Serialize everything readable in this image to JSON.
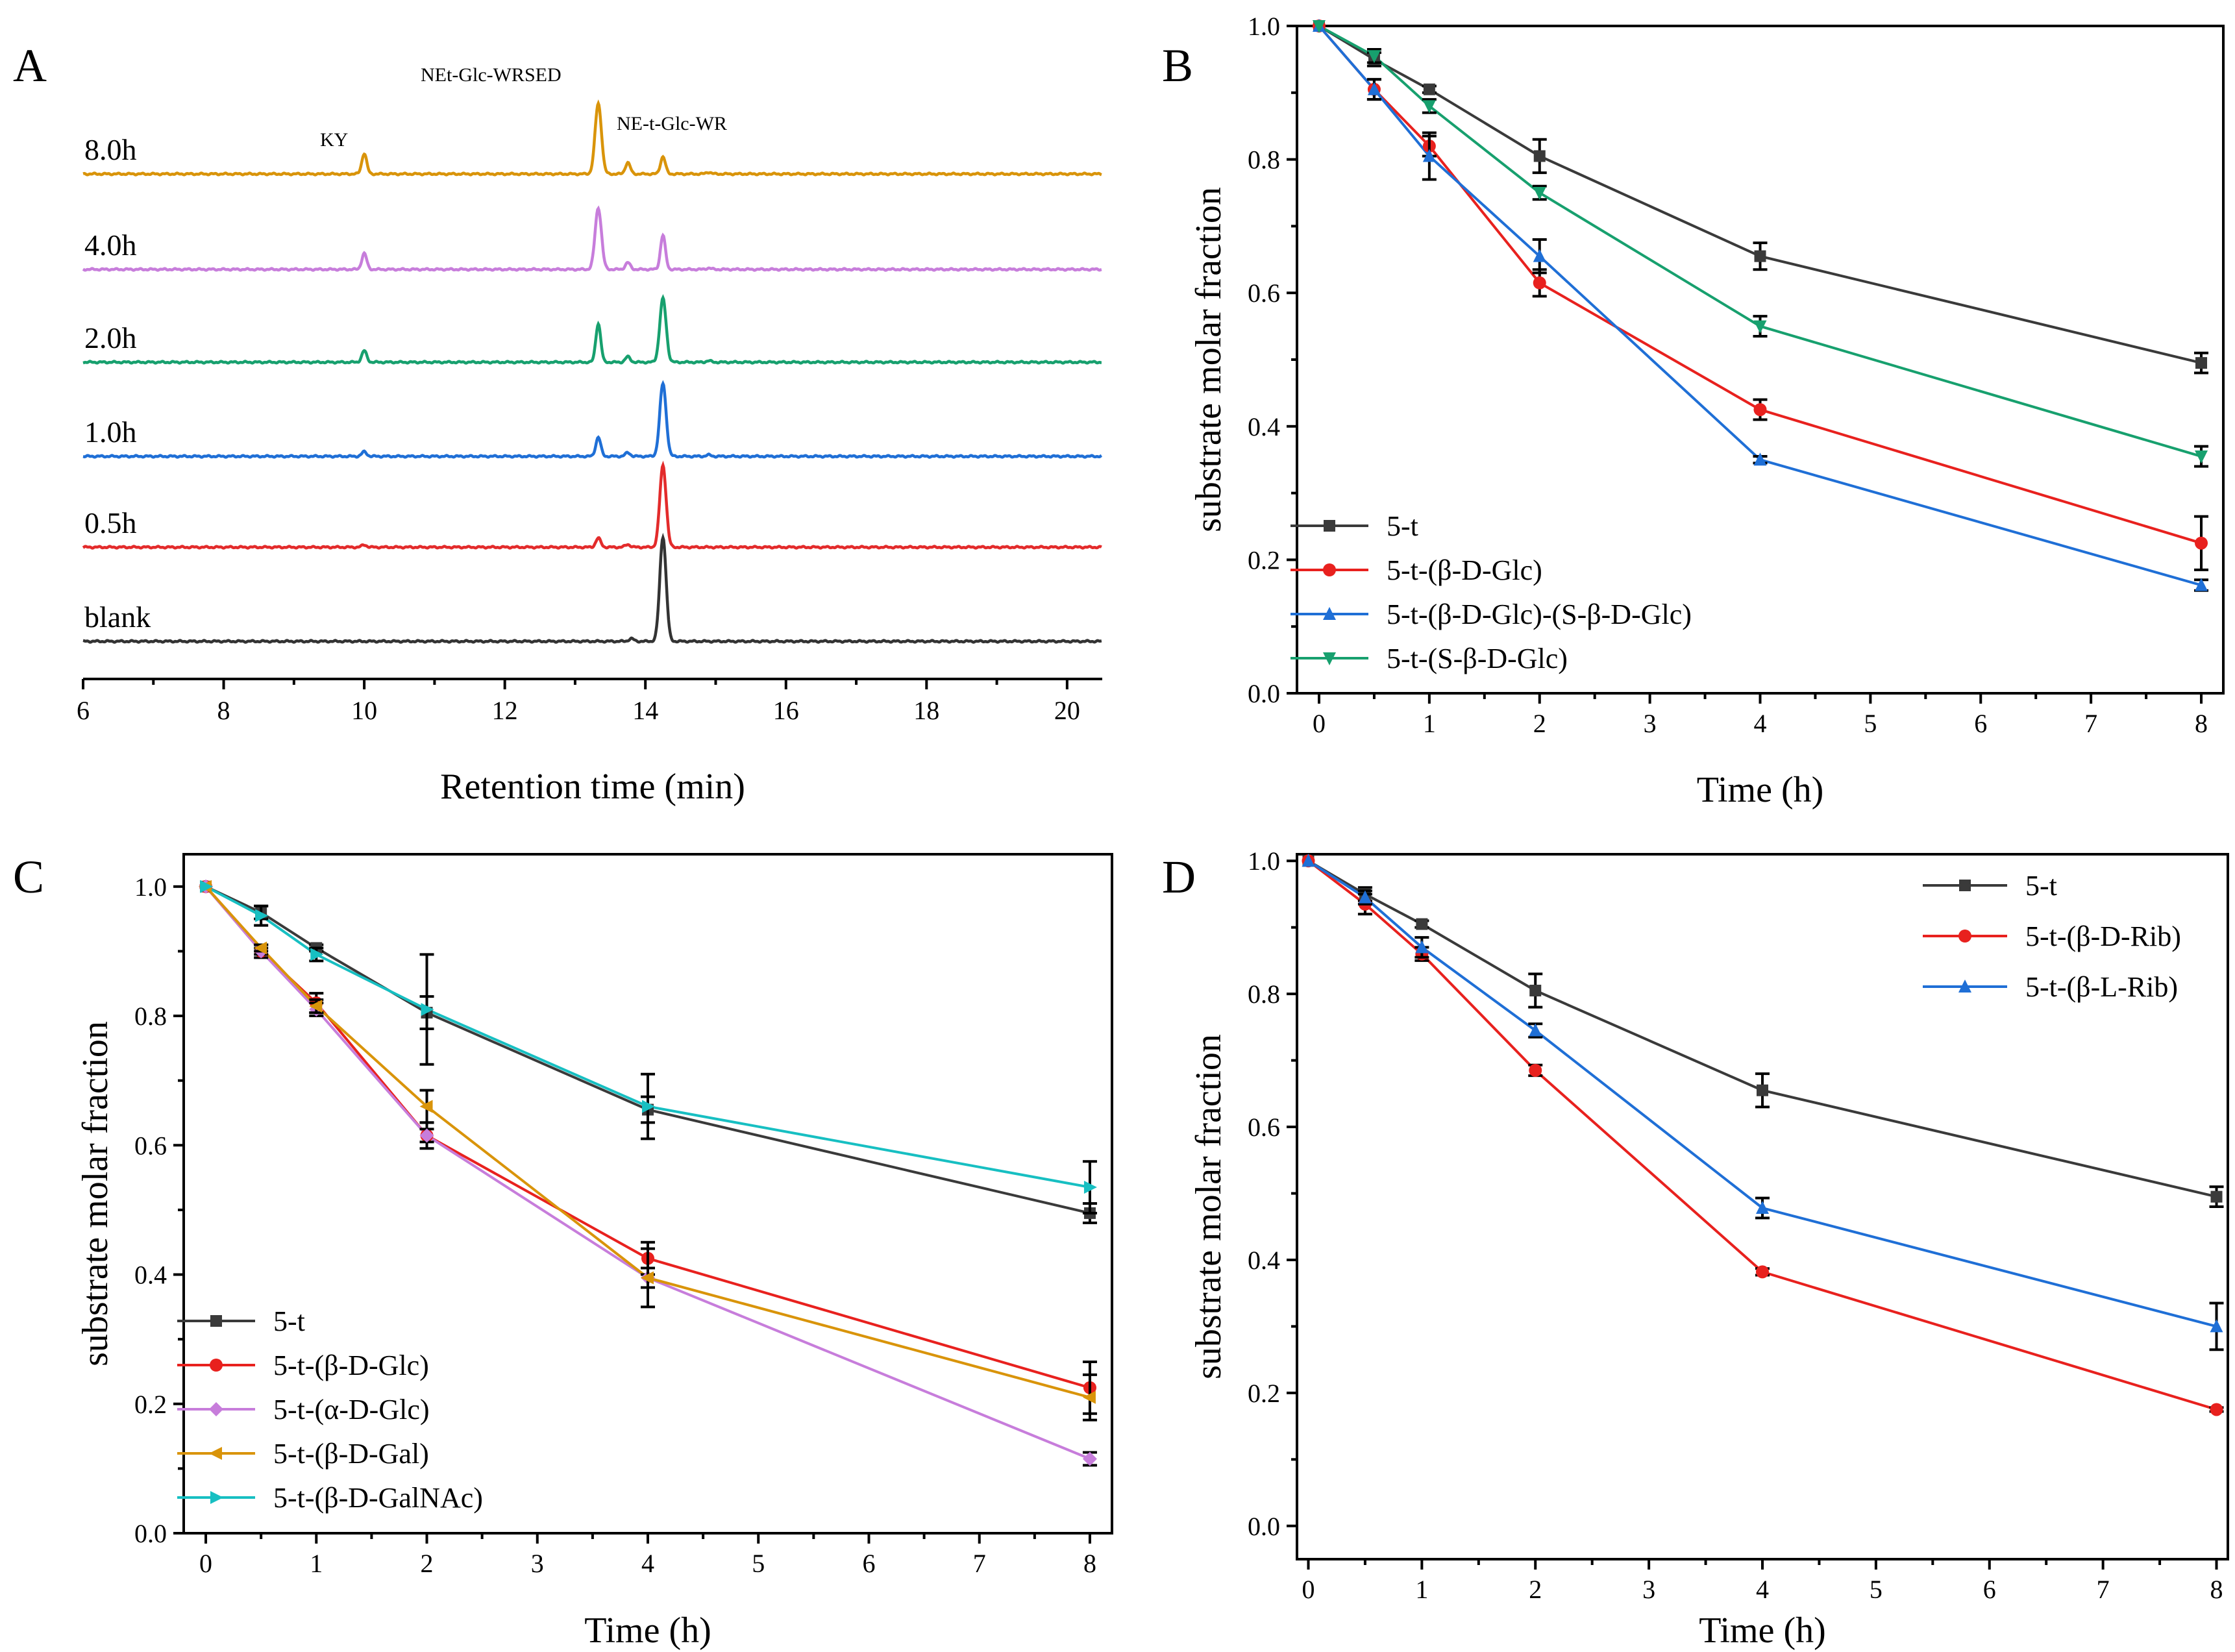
{
  "panels": [
    "A",
    "B",
    "C",
    "D"
  ],
  "chart_data": [
    {
      "panel": "A",
      "type": "line",
      "title": "",
      "xlabel": "Retention time (min)",
      "ylabel": "",
      "xlim": [
        6,
        20.5
      ],
      "xticks": [
        6,
        8,
        10,
        12,
        14,
        16,
        18,
        20
      ],
      "peak_labels": [
        {
          "text": "KY",
          "x": 10.0
        },
        {
          "text": "NEt-Glc-WRSED",
          "x": 13.3
        },
        {
          "text": "NE-t-Glc-WR",
          "x": 14.25
        }
      ],
      "series": [
        {
          "name": "8.0h",
          "color": "#D9940A",
          "peaks": [
            {
              "x": 10.0,
              "h": 0.45
            },
            {
              "x": 13.33,
              "h": 1.55
            },
            {
              "x": 13.75,
              "h": 0.25
            },
            {
              "x": 14.25,
              "h": 0.38
            },
            {
              "x": 14.9,
              "h": 0.04
            }
          ]
        },
        {
          "name": "4.0h",
          "color": "#C77DDB",
          "peaks": [
            {
              "x": 10.0,
              "h": 0.35
            },
            {
              "x": 13.33,
              "h": 1.35
            },
            {
              "x": 13.75,
              "h": 0.15
            },
            {
              "x": 14.25,
              "h": 0.75
            },
            {
              "x": 14.9,
              "h": 0.03
            }
          ]
        },
        {
          "name": "2.0h",
          "color": "#17A06E",
          "peaks": [
            {
              "x": 10.0,
              "h": 0.25
            },
            {
              "x": 13.33,
              "h": 0.85
            },
            {
              "x": 13.75,
              "h": 0.12
            },
            {
              "x": 14.25,
              "h": 1.4
            },
            {
              "x": 14.9,
              "h": 0.03
            }
          ]
        },
        {
          "name": "1.0h",
          "color": "#1F6FD6",
          "peaks": [
            {
              "x": 10.0,
              "h": 0.1
            },
            {
              "x": 13.33,
              "h": 0.42
            },
            {
              "x": 13.75,
              "h": 0.08
            },
            {
              "x": 14.25,
              "h": 1.6
            },
            {
              "x": 14.9,
              "h": 0.03
            }
          ]
        },
        {
          "name": "0.5h",
          "color": "#E32B2B",
          "peaks": [
            {
              "x": 10.0,
              "h": 0.05
            },
            {
              "x": 13.33,
              "h": 0.2
            },
            {
              "x": 13.75,
              "h": 0.06
            },
            {
              "x": 14.25,
              "h": 1.8
            }
          ]
        },
        {
          "name": "blank",
          "color": "#333333",
          "peaks": [
            {
              "x": 13.8,
              "h": 0.06
            },
            {
              "x": 14.25,
              "h": 2.3
            }
          ]
        }
      ]
    },
    {
      "panel": "B",
      "type": "line",
      "title": "",
      "xlabel": "Time (h)",
      "ylabel": "substrate molar fraction",
      "xlim": [
        -0.2,
        8.2
      ],
      "ylim": [
        0,
        1.0
      ],
      "xticks": [
        0,
        1,
        2,
        3,
        4,
        5,
        6,
        7,
        8
      ],
      "yticks": [
        0.0,
        0.2,
        0.4,
        0.6,
        0.8,
        1.0
      ],
      "ytick_labels": [
        "0.0",
        "0.2",
        "0.4",
        "0.6",
        "0.8",
        "1.0"
      ],
      "legend_position": "bottom-left",
      "x": [
        0,
        0.5,
        1,
        2,
        4,
        8
      ],
      "series": [
        {
          "name": "5-t",
          "color": "#3A3A3A",
          "marker": "square",
          "values": [
            1.0,
            0.95,
            0.905,
            0.805,
            0.655,
            0.495
          ],
          "errors": [
            0,
            0.01,
            0.005,
            0.025,
            0.02,
            0.015
          ]
        },
        {
          "name": "5-t-(β-D-Glc)",
          "color": "#E8211E",
          "marker": "circle",
          "values": [
            1.0,
            0.905,
            0.82,
            0.615,
            0.425,
            0.225
          ],
          "errors": [
            0,
            0.015,
            0.015,
            0.02,
            0.015,
            0.04
          ]
        },
        {
          "name": "5-t-(β-D-Glc)-(S-β-D-Glc)",
          "color": "#1F6FD6",
          "marker": "triangle-up",
          "values": [
            1.0,
            0.905,
            0.805,
            0.655,
            0.35,
            0.162
          ],
          "errors": [
            0,
            0.015,
            0.035,
            0.025,
            0.005,
            0.008
          ]
        },
        {
          "name": "5-t-(S-β-D-Glc)",
          "color": "#17A06E",
          "marker": "triangle-down",
          "values": [
            1.0,
            0.955,
            0.88,
            0.75,
            0.55,
            0.355
          ],
          "errors": [
            0,
            0.01,
            0.01,
            0.01,
            0.015,
            0.015
          ]
        }
      ]
    },
    {
      "panel": "C",
      "type": "line",
      "title": "",
      "xlabel": "Time (h)",
      "ylabel": "substrate molar fraction",
      "xlim": [
        -0.2,
        8.2
      ],
      "ylim": [
        0,
        1.05
      ],
      "xticks": [
        0,
        1,
        2,
        3,
        4,
        5,
        6,
        7,
        8
      ],
      "yticks": [
        0.0,
        0.2,
        0.4,
        0.6,
        0.8,
        1.0
      ],
      "ytick_labels": [
        "0.0",
        "0.2",
        "0.4",
        "0.6",
        "0.8",
        "1.0"
      ],
      "legend_position": "bottom-left",
      "x": [
        0,
        0.5,
        1,
        2,
        4,
        8
      ],
      "series": [
        {
          "name": "5-t",
          "color": "#3A3A3A",
          "marker": "square",
          "values": [
            1.0,
            0.96,
            0.905,
            0.805,
            0.655,
            0.495
          ],
          "errors": [
            0,
            0.01,
            0.005,
            0.025,
            0.02,
            0.015
          ]
        },
        {
          "name": "5-t-(β-D-Glc)",
          "color": "#E8211E",
          "marker": "circle",
          "values": [
            1.0,
            0.9,
            0.82,
            0.615,
            0.425,
            0.225
          ],
          "errors": [
            0,
            0.01,
            0.015,
            0.02,
            0.025,
            0.04
          ]
        },
        {
          "name": "5-t-(α-D-Glc)",
          "color": "#C77DDB",
          "marker": "diamond",
          "values": [
            1.0,
            0.9,
            0.81,
            0.615,
            0.395,
            0.115
          ],
          "errors": [
            0,
            0.005,
            0.01,
            0.01,
            0.015,
            0.01
          ]
        },
        {
          "name": "5-t-(β-D-Gal)",
          "color": "#D9940A",
          "marker": "triangle-left",
          "values": [
            1.0,
            0.905,
            0.815,
            0.66,
            0.395,
            0.21
          ],
          "errors": [
            0,
            0.005,
            0.01,
            0.025,
            0.045,
            0.035
          ]
        },
        {
          "name": "5-t-(β-D-GalNAc)",
          "color": "#17BFC2",
          "marker": "triangle-right",
          "values": [
            1.0,
            0.955,
            0.895,
            0.81,
            0.66,
            0.535
          ],
          "errors": [
            0,
            0.015,
            0.01,
            0.085,
            0.05,
            0.04
          ]
        }
      ]
    },
    {
      "panel": "D",
      "type": "line",
      "title": "",
      "xlabel": "Time (h)",
      "ylabel": "substrate molar fraction",
      "xlim": [
        -0.1,
        8.1
      ],
      "ylim": [
        -0.05,
        1.01
      ],
      "xticks": [
        0,
        1,
        2,
        3,
        4,
        5,
        6,
        7,
        8
      ],
      "yticks": [
        0.0,
        0.2,
        0.4,
        0.6,
        0.8,
        1.0
      ],
      "ytick_labels": [
        "0.0",
        "0.2",
        "0.4",
        "0.6",
        "0.8",
        "1.0"
      ],
      "legend_position": "top-right",
      "x": [
        0,
        0.5,
        1,
        2,
        4,
        8
      ],
      "series": [
        {
          "name": "5-t",
          "color": "#3A3A3A",
          "marker": "square",
          "values": [
            1.0,
            0.95,
            0.905,
            0.805,
            0.655,
            0.495
          ],
          "errors": [
            0,
            0.01,
            0.005,
            0.025,
            0.025,
            0.015
          ]
        },
        {
          "name": "5-t-(β-D-Rib)",
          "color": "#E8211E",
          "marker": "circle",
          "values": [
            1.0,
            0.935,
            0.86,
            0.685,
            0.382,
            0.175
          ],
          "errors": [
            0,
            0.015,
            0.01,
            0.008,
            0.005,
            0.003
          ]
        },
        {
          "name": "5-t-(β-L-Rib)",
          "color": "#1F6FD6",
          "marker": "triangle-up",
          "values": [
            1.0,
            0.945,
            0.87,
            0.745,
            0.478,
            0.3
          ],
          "errors": [
            0,
            0.01,
            0.015,
            0.01,
            0.015,
            0.035
          ]
        }
      ]
    }
  ]
}
